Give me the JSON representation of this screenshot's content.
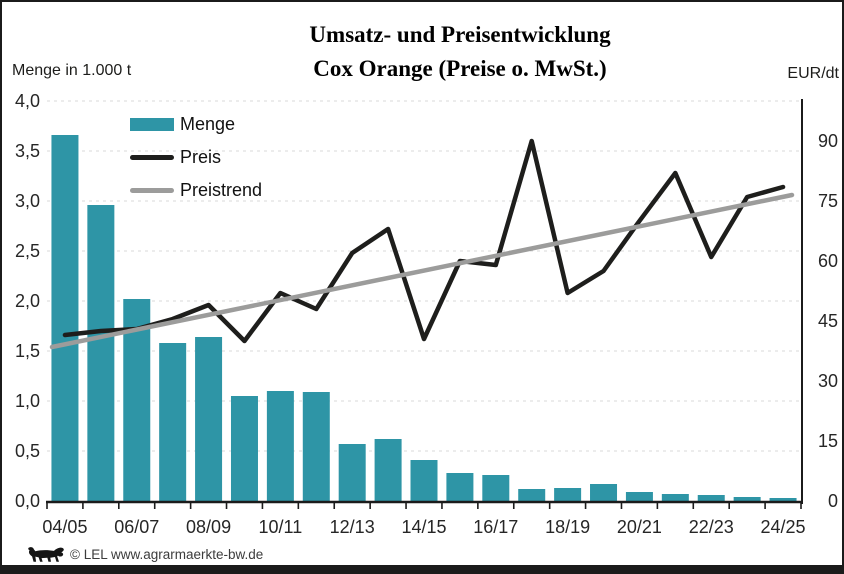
{
  "header": {
    "title_line1": "Umsatz- und Preisentwicklung",
    "title_line2": "Cox Orange (Preise o. MwSt.)"
  },
  "footer": {
    "logo": "bw-lion-logo-icon",
    "text": "© LEL www.agrarmaerkte-bw.de"
  },
  "chart_data": {
    "type": "bar",
    "subtype": "combo-bar-line-dual-axis",
    "title": "Umsatz- und Preisentwicklung Cox Orange (Preise o. MwSt.)",
    "grid": "dashed-horizontal",
    "legend_position": "inside-top-left",
    "left_axis": {
      "label": "Menge in 1.000 t",
      "min": 0,
      "max": 4.0,
      "step": 0.5,
      "tick_labels": [
        "0,0",
        "0,5",
        "1,0",
        "1,5",
        "2,0",
        "2,5",
        "3,0",
        "3,5",
        "4,0"
      ]
    },
    "right_axis": {
      "label": "EUR/dt",
      "min": 0,
      "max": 100,
      "step": 15,
      "ticks": [
        0,
        15,
        30,
        45,
        60,
        75,
        90
      ]
    },
    "categories": [
      "04/05",
      "05/06",
      "06/07",
      "07/08",
      "08/09",
      "09/10",
      "10/11",
      "11/12",
      "12/13",
      "13/14",
      "14/15",
      "15/16",
      "16/17",
      "17/18",
      "18/19",
      "19/20",
      "20/21",
      "21/22",
      "22/23",
      "23/24",
      "24/25"
    ],
    "x_axis_labels_shown": [
      "04/05",
      "06/07",
      "08/09",
      "10/11",
      "12/13",
      "14/15",
      "16/17",
      "18/19",
      "20/21",
      "22/23",
      "24/25"
    ],
    "series": [
      {
        "name": "Menge",
        "type": "bar",
        "axis": "left",
        "color": "#2e95a6",
        "values": [
          3.66,
          2.96,
          2.02,
          1.58,
          1.64,
          1.05,
          1.1,
          1.09,
          0.57,
          0.62,
          0.41,
          0.28,
          0.26,
          0.12,
          0.13,
          0.17,
          0.09,
          0.07,
          0.06,
          0.04,
          0.03
        ]
      },
      {
        "name": "Preis",
        "type": "line",
        "axis": "right",
        "color": "#1e1e1c",
        "values": [
          41.5,
          42.5,
          43,
          45.5,
          49,
          40,
          52,
          48,
          62,
          68,
          40.5,
          60,
          59,
          90,
          52,
          57.5,
          70,
          82,
          61,
          76,
          78.5
        ]
      },
      {
        "name": "Preistrend",
        "type": "trendline",
        "axis": "right",
        "color": "#9c9c9b",
        "start_value": 38.5,
        "end_value": 76.5
      }
    ],
    "colors": {
      "bar": "#2e95a6",
      "price_line": "#1e1e1c",
      "trend_line": "#9c9c9b",
      "gridline": "#d9d9d9",
      "axis": "#1b1b1b"
    }
  }
}
